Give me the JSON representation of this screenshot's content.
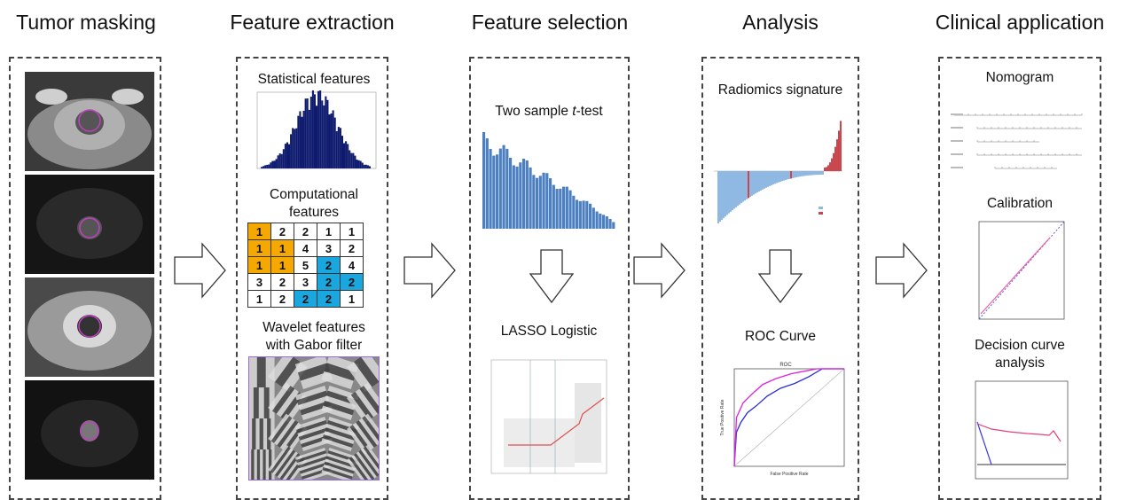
{
  "stages": [
    "Tumor masking",
    "Feature extraction",
    "Feature selection",
    "Analysis",
    "Clinical application"
  ],
  "extraction": {
    "statistical_label": "Statistical features",
    "computational_label_1": "Computational",
    "computational_label_2": "features",
    "wavelet_label_1": "Wavelet features",
    "wavelet_label_2": "with Gabor filter",
    "grid": [
      [
        "1",
        "2",
        "2",
        "1",
        "1"
      ],
      [
        "1",
        "1",
        "4",
        "3",
        "2"
      ],
      [
        "1",
        "1",
        "5",
        "2",
        "4"
      ],
      [
        "3",
        "2",
        "3",
        "2",
        "2"
      ],
      [
        "1",
        "2",
        "2",
        "2",
        "1"
      ]
    ],
    "grid_colors": [
      [
        "o",
        "",
        "",
        "",
        ""
      ],
      [
        "o",
        "o",
        "",
        "",
        ""
      ],
      [
        "o",
        "o",
        "",
        "b",
        ""
      ],
      [
        "",
        "",
        "",
        "b",
        "b"
      ],
      [
        "",
        "",
        "b",
        "b",
        ""
      ]
    ]
  },
  "selection": {
    "ttest_prefix": "Two sample ",
    "ttest_italic": "t",
    "ttest_suffix": "-test",
    "lasso_label": "LASSO Logistic"
  },
  "analysis": {
    "radiomics_label": "Radiomics signature",
    "roc_label": "ROC Curve",
    "roc_title": "ROC",
    "roc_xlabel": "False Positive Rate",
    "roc_ylabel": "True Positive Rate"
  },
  "clinical": {
    "nomogram_label": "Nomogram",
    "calibration_label": "Calibration",
    "dca_label_1": "Decision curve",
    "dca_label_2": "analysis"
  },
  "colors": {
    "histogram": "#0d1a6e",
    "bar_blue": "#4b7fc0",
    "radiomics_blue": "#8fb9e3",
    "radiomics_red": "#c9484f",
    "orange": "#f5a800",
    "cyan": "#1aa7e0",
    "roc_blue": "#2b2bd6",
    "roc_magenta": "#e020e0"
  }
}
